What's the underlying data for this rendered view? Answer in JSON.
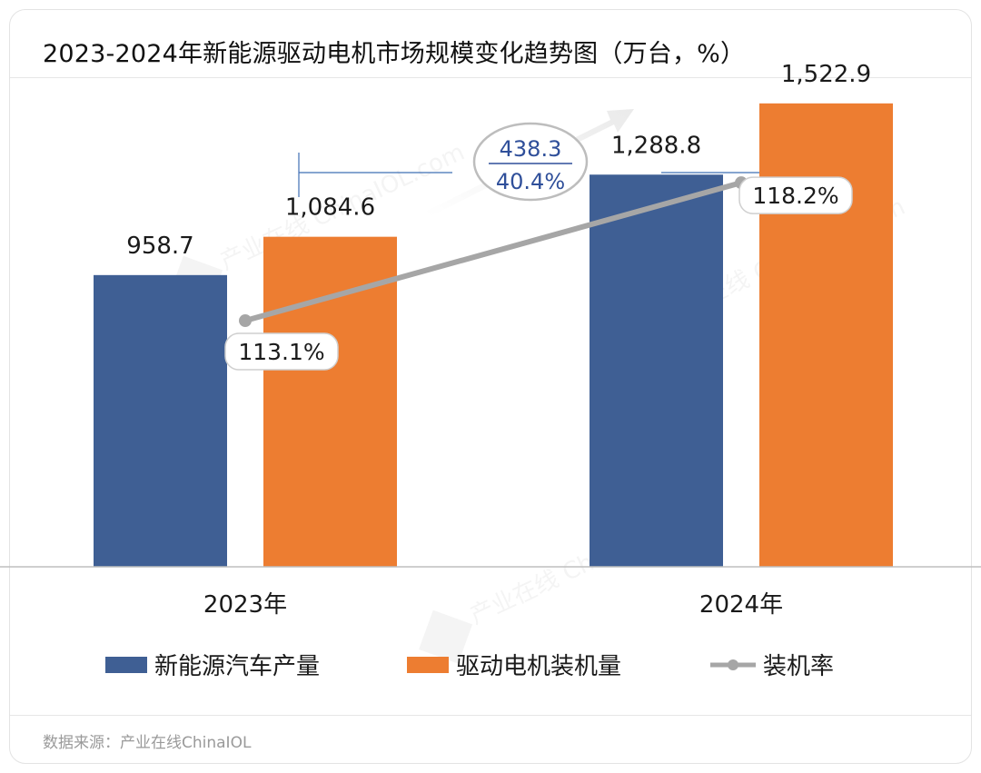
{
  "title": "2023-2024年新能源驱动电机市场规模变化趋势图（万台，%）",
  "source": "数据来源：产业在线ChinaIOL",
  "watermark": "产业在线 ChinaIOL.com",
  "colors": {
    "production": "#3f5f94",
    "installs": "#ed7d31",
    "rate": "#a6a6a6",
    "callout": "#2f4f9a"
  },
  "chart_data": {
    "type": "bar",
    "categories": [
      "2023年",
      "2024年"
    ],
    "series": [
      {
        "name": "新能源汽车产量",
        "values": [
          958.7,
          1288.8
        ],
        "labels": [
          "958.7",
          "1,288.8"
        ],
        "axis": "left"
      },
      {
        "name": "驱动电机装机量",
        "values": [
          1084.6,
          1522.9
        ],
        "labels": [
          "1,084.6",
          "1,522.9"
        ],
        "axis": "left"
      },
      {
        "name": "装机率",
        "type": "line",
        "values": [
          113.1,
          118.2
        ],
        "labels": [
          "113.1%",
          "118.2%"
        ],
        "axis": "right"
      }
    ],
    "annotation": {
      "increase": "438.3",
      "growth": "40.4%"
    },
    "ylim_left": [
      0,
      1600
    ],
    "ylim_right": [
      104,
      122
    ],
    "grid": false,
    "legend": "bottom"
  }
}
